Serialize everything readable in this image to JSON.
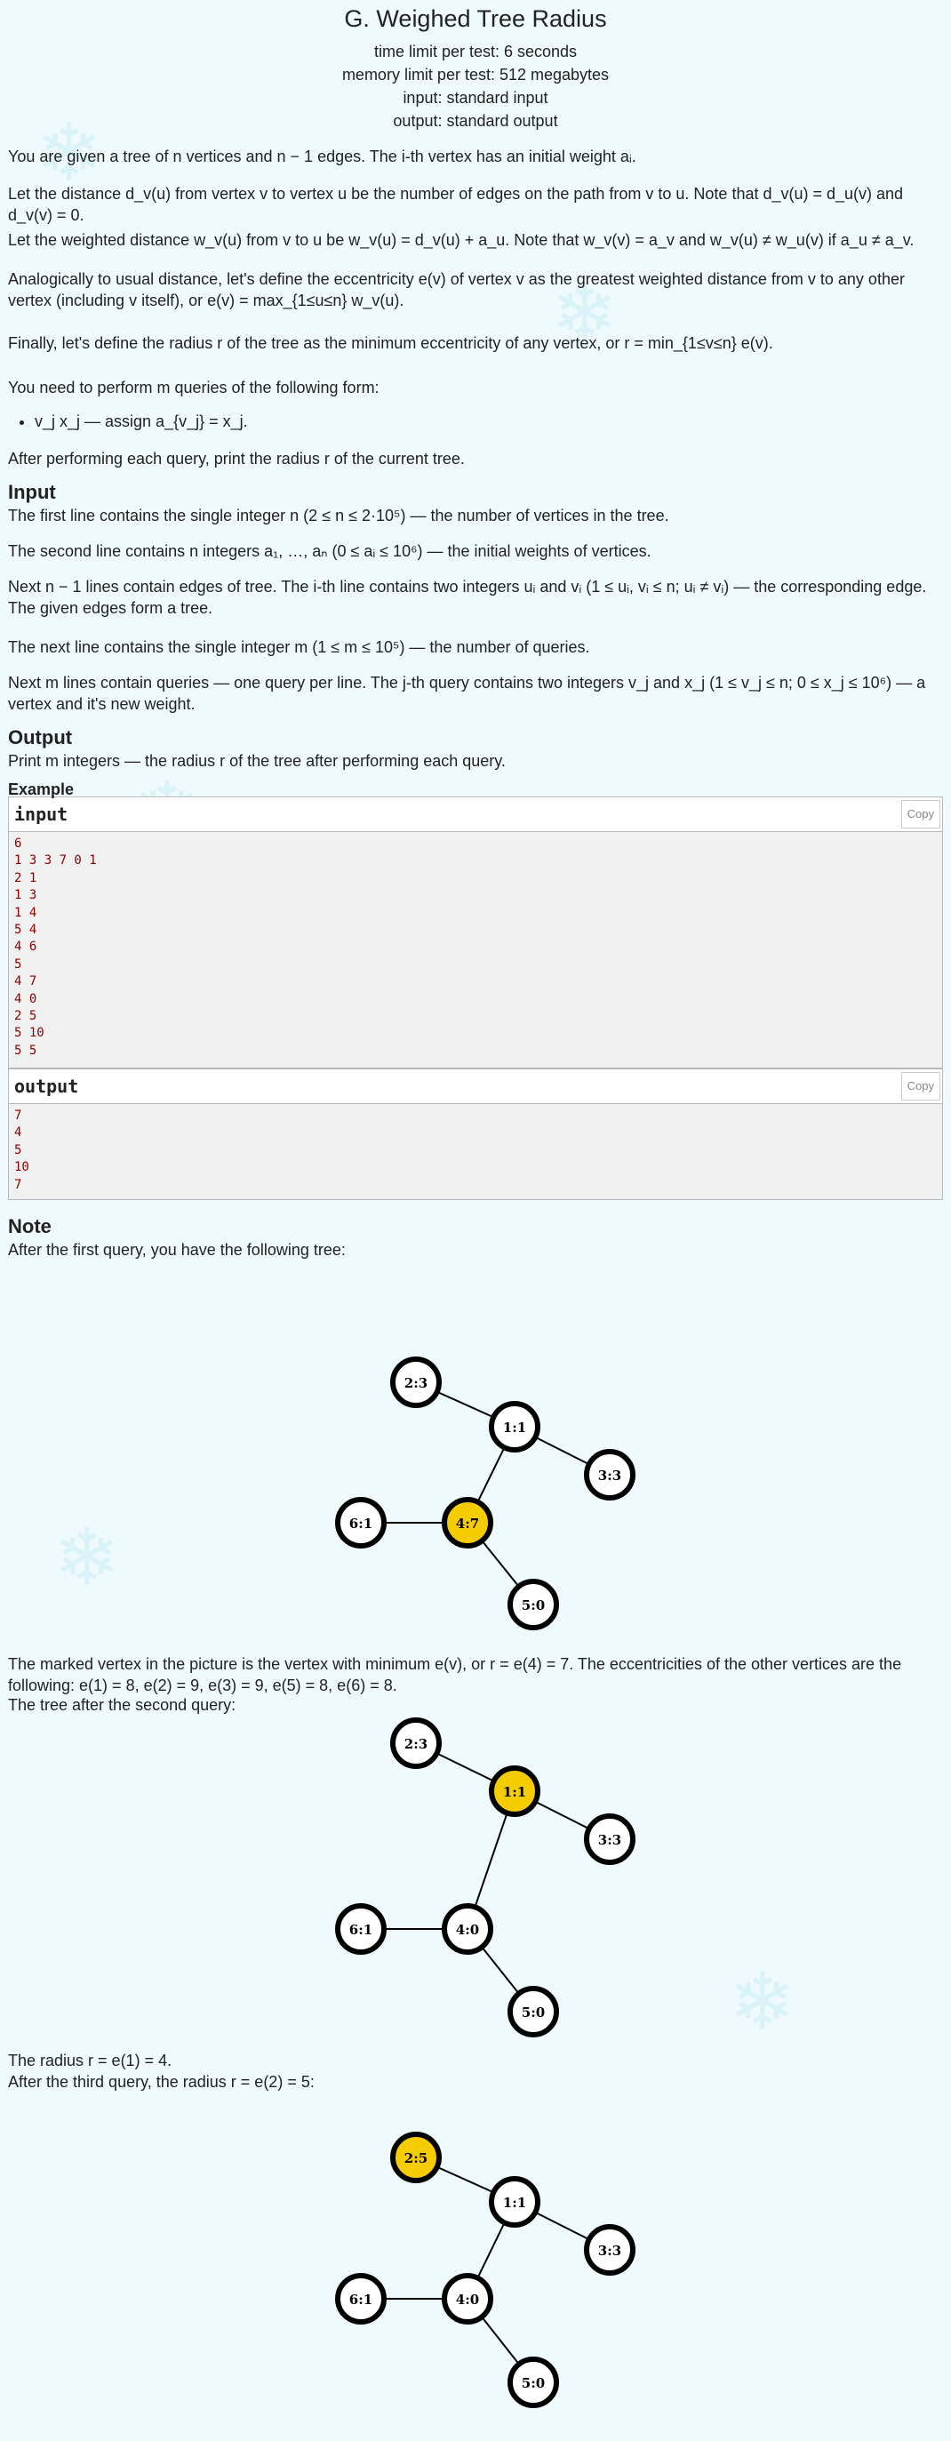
{
  "problem": {
    "title": "G. Weighed Tree Radius",
    "time_limit": "time limit per test: 6 seconds",
    "memory_limit": "memory limit per test: 512 megabytes",
    "input_type": "input: standard input",
    "output_type": "output: standard output"
  },
  "statement": {
    "p1": "You are given a tree of n vertices and n − 1 edges. The i-th vertex has an initial weight aᵢ.",
    "p2": "Let the distance d_v(u) from vertex v to vertex u be the number of edges on the path from v to u. Note that d_v(u) = d_u(v) and d_v(v) = 0.",
    "p3": "Let the weighted distance w_v(u) from v to u be w_v(u) = d_v(u) + a_u. Note that w_v(v) = a_v and w_v(u) ≠ w_u(v) if a_u ≠ a_v.",
    "p4": "Analogically to usual distance, let's define the eccentricity e(v) of vertex v as the greatest weighted distance from v to any other vertex (including v itself), or e(v) = max_{1≤u≤n} w_v(u).",
    "p5": "Finally, let's define the radius r of the tree as the minimum eccentricity of any vertex, or r = min_{1≤v≤n} e(v).",
    "p6": "You need to perform m queries of the following form:",
    "bullet": "v_j x_j — assign a_{v_j} = x_j.",
    "p7": "After performing each query, print the radius r of the current tree."
  },
  "input_section": {
    "title": "Input",
    "p1": "The first line contains the single integer n (2 ≤ n ≤ 2·10⁵) — the number of vertices in the tree.",
    "p2": "The second line contains n integers a₁, …, aₙ (0 ≤ aᵢ ≤ 10⁶) — the initial weights of vertices.",
    "p3": "Next n − 1 lines contain edges of tree. The i-th line contains two integers uᵢ and vᵢ (1 ≤ uᵢ, vᵢ ≤ n; uᵢ ≠ vᵢ) — the corresponding edge. The given edges form a tree.",
    "p4": "The next line contains the single integer m (1 ≤ m ≤ 10⁵) — the number of queries.",
    "p5": "Next m lines contain queries — one query per line. The j-th query contains two integers v_j and x_j (1 ≤ v_j ≤ n; 0 ≤ x_j ≤ 10⁶) — a vertex and it's new weight."
  },
  "output_section": {
    "title": "Output",
    "p1": "Print m integers — the radius r of the tree after performing each query."
  },
  "example": {
    "title": "Example",
    "input_label": "input",
    "output_label": "output",
    "copy_label": "Copy",
    "input_text": "6\n1 3 3 7 0 1\n2 1\n1 3\n1 4\n5 4\n4 6\n5\n4 7\n4 0\n2 5\n5 10\n5 5",
    "output_text": "7\n4\n5\n10\n7"
  },
  "note": {
    "title": "Note",
    "p1": "After the first query, you have the following tree:",
    "p2": "The marked vertex in the picture is the vertex with minimum e(v), or r = e(4) = 7. The eccentricities of the other vertices are the following: e(1) = 8, e(2) = 9, e(3) = 9, e(5) = 8, e(6) = 8.",
    "p3": "The tree after the second query:",
    "p4": "The radius r = e(1) = 4.",
    "p5": "After the third query, the radius r = e(2) = 5:"
  },
  "trees": [
    {
      "highlight": "4:7",
      "nodes": {
        "n2": "2:3",
        "n1": "1:1",
        "n3": "3:3",
        "n6": "6:1",
        "n4": "4:7",
        "n5": "5:0"
      }
    },
    {
      "highlight": "1:1",
      "nodes": {
        "n2": "2:3",
        "n1": "1:1",
        "n3": "3:3",
        "n6": "6:1",
        "n4": "4:0",
        "n5": "5:0"
      }
    },
    {
      "highlight": "2:5",
      "nodes": {
        "n2": "2:5",
        "n1": "1:1",
        "n3": "3:3",
        "n6": "6:1",
        "n4": "4:0",
        "n5": "5:0"
      }
    }
  ],
  "colors": {
    "highlight": "#f5cc00",
    "node_fill": "#ffffff",
    "stroke": "#000000"
  }
}
